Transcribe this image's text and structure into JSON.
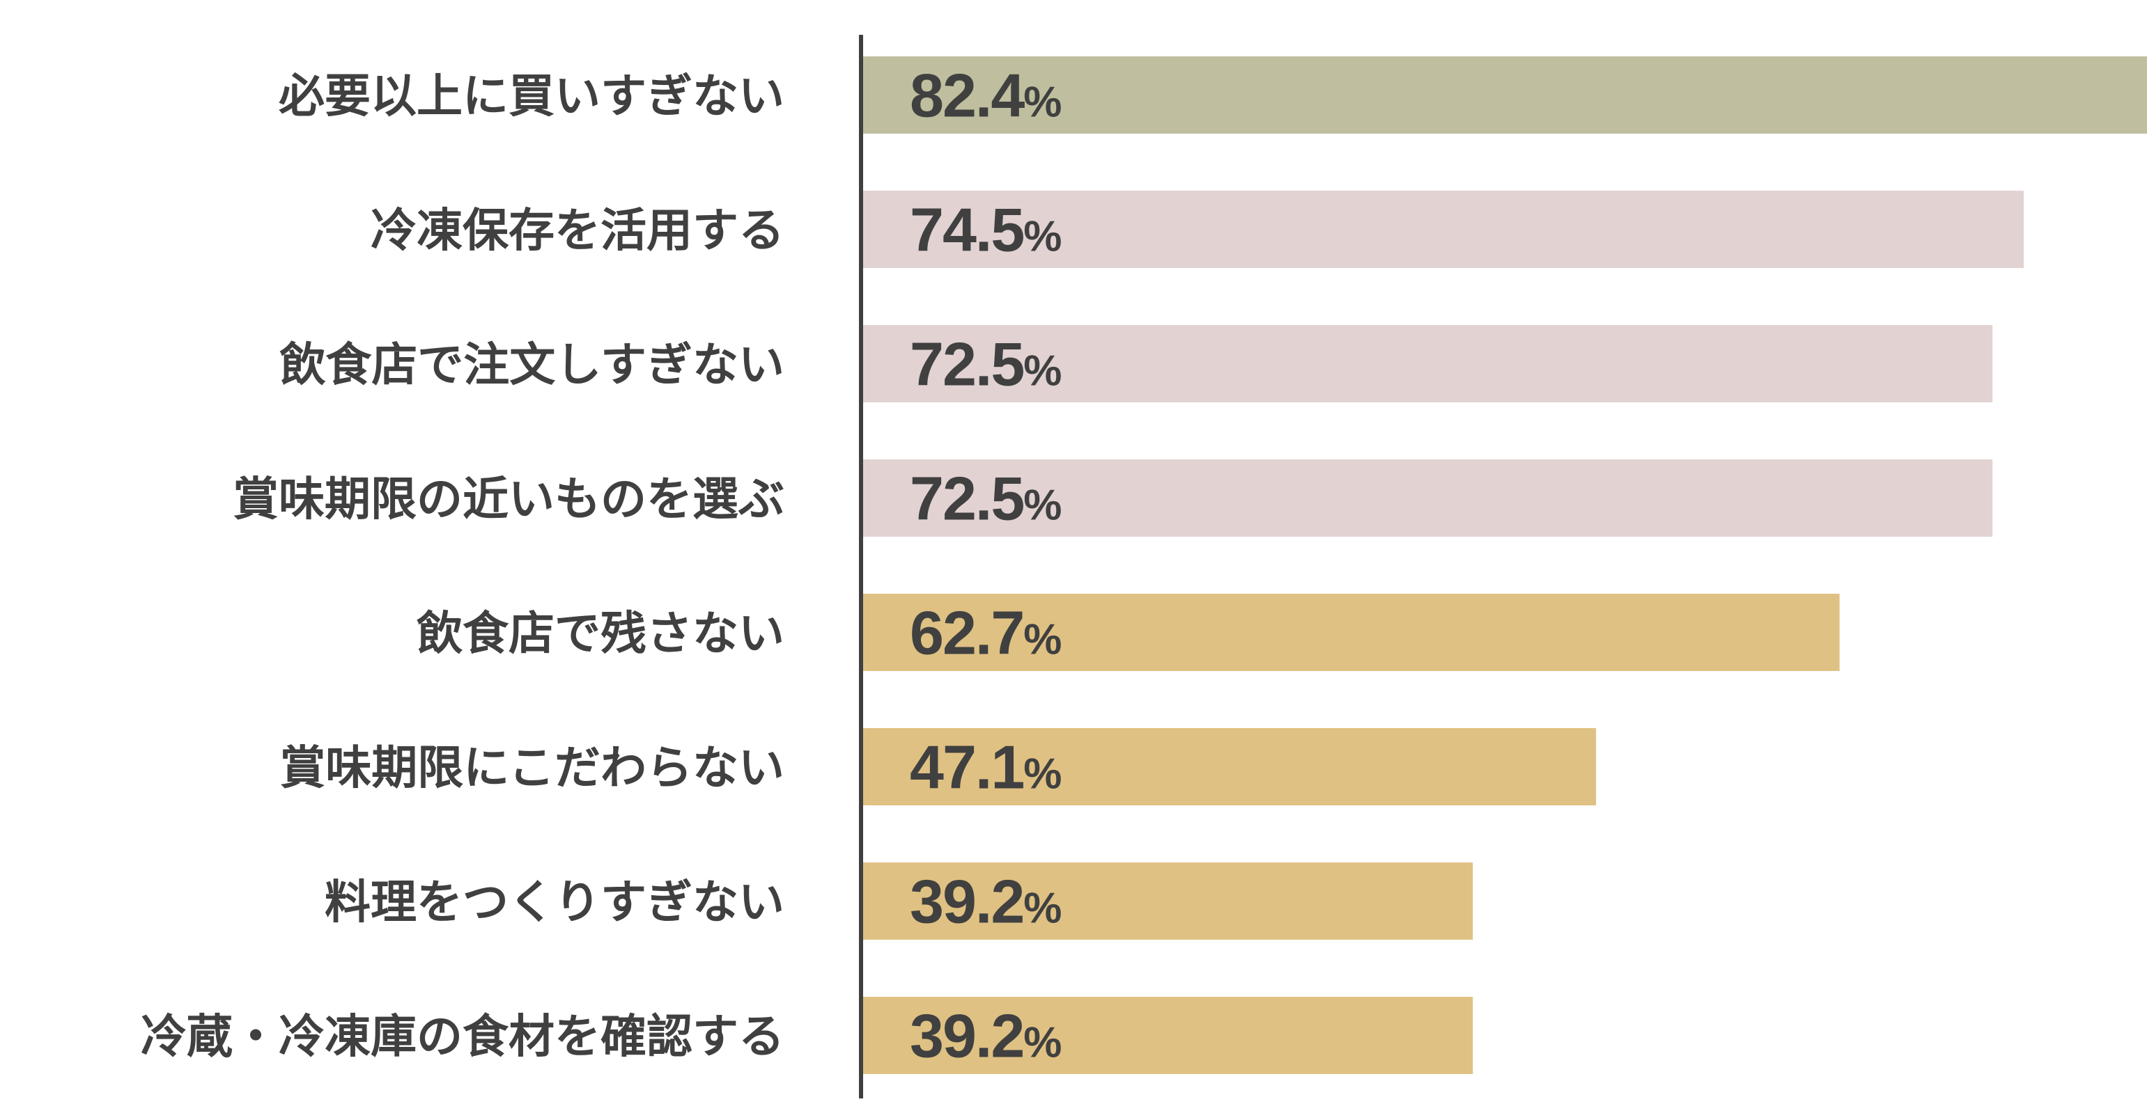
{
  "chart_data": {
    "type": "bar",
    "orientation": "horizontal",
    "categories": [
      "必要以上に買いすぎない",
      "冷凍保存を活用する",
      "飲食店で注文しすぎない",
      "賞味期限の近いものを選ぶ",
      "飲食店で残さない",
      "賞味期限にこだわらない",
      "料理をつくりすぎない",
      "冷蔵・冷凍庫の食材を確認する"
    ],
    "values": [
      82.4,
      74.5,
      72.5,
      72.5,
      62.7,
      47.1,
      39.2,
      39.2
    ],
    "value_labels": [
      "82.4",
      "74.5",
      "72.5",
      "72.5",
      "62.7",
      "47.1",
      "39.2",
      "39.2"
    ],
    "unit": "%",
    "bar_colors": [
      "#bfbf9f",
      "#e2d2d2",
      "#e2d2d2",
      "#e2d2d2",
      "#dfc183",
      "#dfc183",
      "#dfc183",
      "#dfc183"
    ],
    "axis_color": "#404040",
    "text_color": "#404040",
    "xlim": [
      0,
      82.4
    ],
    "grid": false,
    "legend": "none",
    "title": "",
    "xlabel": "",
    "ylabel": ""
  }
}
